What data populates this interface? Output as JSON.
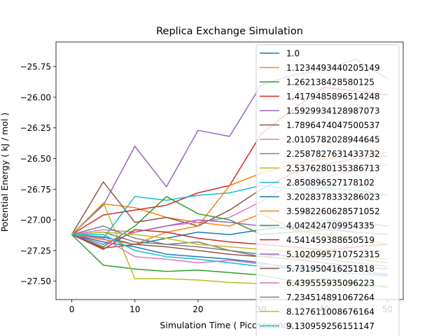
{
  "chart_data": {
    "type": "line",
    "title": "Replica Exchange Simulation",
    "xlabel": "Simulation Time ( Picoseconds )",
    "ylabel": "Potential Energy ( kJ / mol )",
    "xlim": [
      -2.5,
      52.5
    ],
    "ylim": [
      -27.65,
      -25.55
    ],
    "xticks": [
      0,
      10,
      20,
      30,
      40,
      50
    ],
    "yticks": [
      -27.5,
      -27.25,
      -27.0,
      -26.75,
      -26.5,
      -26.25,
      -26.0,
      -25.75
    ],
    "ytick_labels": [
      "−27.50",
      "−27.25",
      "−27.00",
      "−26.75",
      "−26.50",
      "−26.25",
      "−26.00",
      "−25.75"
    ],
    "grid": false,
    "legend_position": "upper right",
    "x": [
      0,
      5,
      10,
      15,
      20,
      25,
      30,
      35,
      40,
      45,
      50
    ],
    "series": [
      {
        "name": "1.0",
        "color": "#1f77b4",
        "values": [
          -27.12,
          -27.18,
          -27.22,
          -27.28,
          -27.3,
          -27.32,
          -27.35,
          -27.4,
          -27.38,
          -27.42,
          -27.45
        ]
      },
      {
        "name": "1.1234493440205149",
        "color": "#ff7f0e",
        "values": [
          -27.12,
          -26.87,
          -26.9,
          -26.98,
          -27.02,
          -27.05,
          -26.95,
          -27.08,
          -27.12,
          -27.15,
          -27.2
        ]
      },
      {
        "name": "1.262138428580125",
        "color": "#2ca02c",
        "values": [
          -27.12,
          -27.37,
          -27.4,
          -27.42,
          -27.41,
          -27.43,
          -27.45,
          -27.5,
          -27.48,
          -27.52,
          -27.55
        ]
      },
      {
        "name": "1.4179485896514248",
        "color": "#d62728",
        "values": [
          -27.12,
          -26.96,
          -26.92,
          -26.88,
          -26.78,
          -26.72,
          -26.3,
          -26.1,
          -25.92,
          -25.95,
          -25.98
        ]
      },
      {
        "name": "1.5929934128987073",
        "color": "#9467bd",
        "values": [
          -27.12,
          -26.88,
          -26.4,
          -26.73,
          -26.27,
          -26.32,
          -25.9,
          -25.82,
          -25.78,
          -25.69,
          -25.85
        ]
      },
      {
        "name": "1.7896474047500537",
        "color": "#8c564b",
        "values": [
          -27.12,
          -26.69,
          -27.02,
          -26.98,
          -27.05,
          -26.92,
          -26.75,
          -26.62,
          -26.55,
          -26.5,
          -26.48
        ]
      },
      {
        "name": "2.0105782028944645",
        "color": "#e377c2",
        "values": [
          -27.12,
          -27.08,
          -27.1,
          -27.05,
          -27.02,
          -26.98,
          -26.85,
          -26.7,
          -26.65,
          -26.6,
          -26.55
        ]
      },
      {
        "name": "2.2587827631433732",
        "color": "#7f7f7f",
        "values": [
          -27.12,
          -27.1,
          -27.18,
          -27.2,
          -27.22,
          -27.25,
          -27.28,
          -27.3,
          -27.32,
          -27.35,
          -27.38
        ]
      },
      {
        "name": "2.5376280135386713",
        "color": "#bcbd22",
        "values": [
          -27.12,
          -26.86,
          -27.48,
          -27.48,
          -27.49,
          -27.51,
          -27.52,
          -27.51,
          -27.52,
          -27.53,
          -27.54
        ]
      },
      {
        "name": "2.850896527178102",
        "color": "#17becf",
        "values": [
          -27.12,
          -27.15,
          -26.81,
          -26.84,
          -26.8,
          -26.78,
          -26.72,
          -26.75,
          -26.74,
          -26.76,
          -26.8
        ]
      },
      {
        "name": "3.2028378333286023",
        "color": "#1f77b4",
        "values": [
          -27.12,
          -27.14,
          -27.2,
          -27.15,
          -27.1,
          -27.12,
          -27.08,
          -27.05,
          -27.0,
          -27.02,
          -27.05
        ]
      },
      {
        "name": "3.5982260628571052",
        "color": "#ff7f0e",
        "values": [
          -27.12,
          -27.16,
          -27.2,
          -27.1,
          -27.05,
          -26.72,
          -26.62,
          -26.55,
          -26.5,
          -26.48,
          -26.45
        ]
      },
      {
        "name": "4.042424709954335",
        "color": "#2ca02c",
        "values": [
          -27.12,
          -27.22,
          -27.05,
          -26.81,
          -26.95,
          -27.0,
          -27.12,
          -27.1,
          -27.08,
          -27.1,
          -27.12
        ]
      },
      {
        "name": "4.541459388650519",
        "color": "#d62728",
        "values": [
          -27.12,
          -27.24,
          -27.08,
          -27.1,
          -27.15,
          -27.18,
          -27.2,
          -27.22,
          -27.25,
          -27.22,
          -27.2
        ]
      },
      {
        "name": "5.1020995710752315",
        "color": "#9467bd",
        "values": [
          -27.12,
          -27.2,
          -27.1,
          -27.05,
          -27.0,
          -27.02,
          -27.05,
          -27.08,
          -27.06,
          -27.1,
          -27.12
        ]
      },
      {
        "name": "5.731950416251818",
        "color": "#8c564b",
        "values": [
          -27.12,
          -27.23,
          -27.2,
          -27.22,
          -27.25,
          -27.28,
          -27.3,
          -27.32,
          -27.35,
          -27.38,
          -27.4
        ]
      },
      {
        "name": "6.439555935096223",
        "color": "#e377c2",
        "values": [
          -27.12,
          -27.15,
          -27.3,
          -27.32,
          -27.35,
          -27.33,
          -27.36,
          -27.38,
          -27.4,
          -27.42,
          -27.44
        ]
      },
      {
        "name": "7.234514891067264",
        "color": "#7f7f7f",
        "values": [
          -27.12,
          -27.05,
          -27.15,
          -27.2,
          -27.18,
          -27.25,
          -27.3,
          -27.28,
          -27.3,
          -27.32,
          -27.35
        ]
      },
      {
        "name": "8.127611008676164",
        "color": "#bcbd22",
        "values": [
          -27.12,
          -27.1,
          -27.12,
          -27.15,
          -27.2,
          -27.22,
          -27.24,
          -27.26,
          -27.28,
          -27.3,
          -27.32
        ]
      },
      {
        "name": "9.130959256151147",
        "color": "#17becf",
        "values": [
          -27.12,
          -27.12,
          -27.25,
          -27.3,
          -27.32,
          -27.35,
          -27.38,
          -27.4,
          -27.42,
          -27.44,
          -27.46
        ]
      }
    ]
  }
}
